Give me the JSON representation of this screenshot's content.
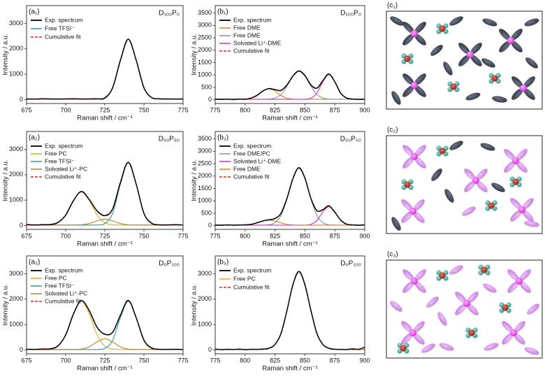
{
  "chart_data": [
    {
      "type": "line",
      "label": "(a₁)",
      "annotation": "D₁₀₀P₀",
      "x_label": "Raman shift / cm⁻¹",
      "y_label": "Intensity / a.u.",
      "x": [
        675,
        680,
        685,
        690,
        695,
        700,
        705,
        710,
        715,
        720,
        725,
        730,
        735,
        740,
        745,
        750,
        755,
        760,
        765,
        770,
        775
      ],
      "xlim": [
        675,
        775
      ],
      "xticks": [
        675,
        700,
        725,
        750,
        775
      ],
      "ylim": [
        -150,
        3700
      ],
      "yticks": [
        0,
        1000,
        2000,
        3000
      ],
      "legend": "upper left",
      "series": [
        {
          "name": "Exp. spectrum",
          "color": "#000000",
          "values": [
            30,
            25,
            35,
            30,
            25,
            30,
            35,
            30,
            30,
            35,
            60,
            470,
            1550,
            2380,
            1560,
            470,
            80,
            35,
            30,
            25,
            30
          ]
        },
        {
          "name": "Free TFSI⁻",
          "color": "#2a9d8f",
          "values": [
            25,
            25,
            25,
            25,
            25,
            25,
            25,
            25,
            25,
            28,
            81,
            472,
            1576,
            2375,
            1576,
            472,
            81,
            28,
            25,
            25,
            25
          ]
        },
        {
          "name": "Cumulative fit",
          "color": "#e8201f",
          "dash": true,
          "values": [
            25,
            25,
            25,
            25,
            25,
            25,
            25,
            25,
            25,
            28,
            81,
            472,
            1576,
            2375,
            1576,
            472,
            81,
            28,
            25,
            25,
            25
          ]
        }
      ]
    },
    {
      "type": "line",
      "label": "(b₁)",
      "annotation": "D₁₀₀P₀",
      "x_label": "Raman shift / cm⁻¹",
      "y_label": "Intensity / a.u.",
      "x": [
        775,
        780,
        785,
        790,
        795,
        800,
        805,
        810,
        815,
        820,
        825,
        830,
        835,
        840,
        845,
        850,
        855,
        860,
        865,
        870,
        875,
        880,
        885,
        890,
        895,
        900
      ],
      "xlim": [
        775,
        900
      ],
      "xticks": [
        775,
        800,
        825,
        850,
        875,
        900
      ],
      "ylim": [
        -150,
        3800
      ],
      "yticks": [
        0,
        500,
        1000,
        1500,
        2000,
        2500,
        3000,
        3500
      ],
      "legend": "upper left",
      "series": [
        {
          "name": "Exp. spectrum",
          "color": "#000000",
          "values": [
            30,
            15,
            25,
            10,
            30,
            20,
            70,
            180,
            360,
            450,
            410,
            380,
            600,
            960,
            1160,
            980,
            600,
            470,
            770,
            1040,
            720,
            260,
            70,
            30,
            15,
            25
          ]
        },
        {
          "name": "Free DME",
          "color": "#e07b28",
          "values": [
            20,
            20,
            20,
            20,
            21,
            27,
            63,
            175,
            353,
            450,
            353,
            175,
            63,
            27,
            20,
            20,
            20,
            20,
            20,
            20,
            20,
            20,
            20,
            20,
            20,
            20
          ]
        },
        {
          "name": "Free DME",
          "color": "#8a8d9c",
          "values": [
            20,
            20,
            20,
            20,
            20,
            20,
            20,
            20,
            21,
            29,
            71,
            216,
            549,
            963,
            1170,
            963,
            549,
            216,
            71,
            29,
            21,
            20,
            20,
            20,
            20,
            20
          ]
        },
        {
          "name": "Solvated Li⁺-DME",
          "color": "#d52fd0",
          "values": [
            20,
            20,
            20,
            20,
            20,
            20,
            20,
            20,
            20,
            20,
            20,
            20,
            20,
            20,
            20,
            24,
            64,
            270,
            727,
            1020,
            727,
            270,
            64,
            24,
            20,
            20
          ]
        },
        {
          "name": "Cumulative fit",
          "color": "#e8201f",
          "dash": true,
          "values": [
            20,
            20,
            20,
            20,
            21,
            27,
            63,
            175,
            354,
            459,
            404,
            371,
            592,
            970,
            1170,
            967,
            593,
            466,
            778,
            1029,
            728,
            270,
            64,
            24,
            20,
            20
          ]
        }
      ]
    },
    {
      "type": "line",
      "label": "(a₂)",
      "annotation": "D₅₀P₅₀",
      "x_label": "Raman shift / cm⁻¹",
      "y_label": "Intensity / a.u.",
      "x": [
        675,
        680,
        685,
        690,
        695,
        700,
        705,
        710,
        715,
        720,
        725,
        730,
        735,
        740,
        745,
        750,
        755,
        760,
        765,
        770,
        775
      ],
      "xlim": [
        675,
        775
      ],
      "xticks": [
        675,
        700,
        725,
        750,
        775
      ],
      "ylim": [
        -150,
        3700
      ],
      "yticks": [
        0,
        1000,
        2000,
        3000
      ],
      "legend": "upper left",
      "series": [
        {
          "name": "Exp. spectrum",
          "color": "#000000",
          "values": [
            40,
            25,
            35,
            40,
            120,
            410,
            980,
            1340,
            1030,
            580,
            390,
            650,
            1700,
            2490,
            1640,
            480,
            90,
            30,
            25,
            35,
            20
          ]
        },
        {
          "name": "Free PC",
          "color": "#e6a817",
          "values": [
            20,
            20,
            20,
            31,
            111,
            418,
            987,
            1320,
            987,
            418,
            111,
            31,
            21,
            20,
            20,
            20,
            20,
            20,
            20,
            20,
            20
          ]
        },
        {
          "name": "Free TFSI⁻",
          "color": "#2a9d8f",
          "values": [
            20,
            20,
            20,
            20,
            20,
            20,
            20,
            20,
            20,
            23,
            79,
            486,
            1637,
            2470,
            1637,
            486,
            79,
            23,
            20,
            20,
            20
          ]
        },
        {
          "name": "Solvated Li⁺-PC",
          "color": "#a58a2c",
          "values": [
            20,
            20,
            20,
            20,
            20,
            20,
            20,
            30,
            78,
            183,
            250,
            183,
            78,
            30,
            21,
            20,
            20,
            20,
            20,
            20,
            20
          ]
        },
        {
          "name": "Cumulative fit",
          "color": "#e8201f",
          "dash": true,
          "values": [
            20,
            20,
            20,
            31,
            111,
            418,
            987,
            1330,
            1025,
            584,
            400,
            660,
            1696,
            2480,
            1638,
            486,
            79,
            23,
            20,
            20,
            20
          ]
        }
      ]
    },
    {
      "type": "line",
      "label": "(b₂)",
      "annotation": "D₅₀P₅₀",
      "x_label": "Raman shift / cm⁻¹",
      "y_label": "Intensity / a.u.",
      "x": [
        775,
        780,
        785,
        790,
        795,
        800,
        805,
        810,
        815,
        820,
        825,
        830,
        835,
        840,
        845,
        850,
        855,
        860,
        865,
        870,
        875,
        880,
        885,
        890,
        895,
        900
      ],
      "xlim": [
        775,
        900
      ],
      "xticks": [
        775,
        800,
        825,
        850,
        875,
        900
      ],
      "ylim": [
        -150,
        3800
      ],
      "yticks": [
        0,
        500,
        1000,
        1500,
        2000,
        2500,
        3000,
        3500
      ],
      "legend": "upper left",
      "series": [
        {
          "name": "Exp. spectrum",
          "color": "#000000",
          "values": [
            25,
            15,
            30,
            20,
            25,
            35,
            50,
            120,
            190,
            240,
            290,
            500,
            1100,
            1900,
            2340,
            1920,
            1100,
            610,
            640,
            800,
            540,
            220,
            60,
            30,
            15,
            30
          ]
        },
        {
          "name": "Free DME/PC",
          "color": "#8a8d9c",
          "values": [
            20,
            20,
            20,
            20,
            20,
            20,
            20,
            20,
            22,
            37,
            121,
            411,
            1078,
            1906,
            2320,
            1906,
            1078,
            411,
            121,
            37,
            22,
            20,
            20,
            20,
            20,
            20
          ]
        },
        {
          "name": "Solvated Li⁺-DME",
          "color": "#d52fd0",
          "values": [
            20,
            20,
            20,
            20,
            20,
            20,
            20,
            20,
            20,
            20,
            20,
            20,
            20,
            20,
            20,
            20,
            53,
            208,
            550,
            770,
            550,
            208,
            53,
            23,
            20,
            20
          ]
        },
        {
          "name": "Free DME",
          "color": "#e07b28",
          "values": [
            20,
            20,
            20,
            20,
            22,
            29,
            54,
            112,
            184,
            220,
            184,
            112,
            54,
            29,
            22,
            20,
            20,
            20,
            20,
            20,
            20,
            20,
            20,
            20,
            20,
            20
          ]
        },
        {
          "name": "Cumulative fit",
          "color": "#e8201f",
          "dash": true,
          "values": [
            20,
            20,
            20,
            20,
            22,
            29,
            54,
            112,
            186,
            237,
            285,
            503,
            1112,
            1915,
            2322,
            1906,
            1111,
            599,
            651,
            787,
            552,
            208,
            53,
            23,
            20,
            20
          ]
        }
      ]
    },
    {
      "type": "line",
      "label": "(a₃)",
      "annotation": "D₀P₁₀₀",
      "x_label": "Raman shift / cm⁻¹",
      "y_label": "Intensity / a.u.",
      "x": [
        675,
        680,
        685,
        690,
        695,
        700,
        705,
        710,
        715,
        720,
        725,
        730,
        735,
        740,
        745,
        750,
        755,
        760,
        765,
        770,
        775
      ],
      "xlim": [
        675,
        775
      ],
      "xticks": [
        675,
        700,
        725,
        750,
        775
      ],
      "ylim": [
        -150,
        3700
      ],
      "yticks": [
        0,
        1000,
        2000,
        3000
      ],
      "legend": "upper left",
      "series": [
        {
          "name": "Exp. spectrum",
          "color": "#000000",
          "values": [
            30,
            25,
            40,
            45,
            160,
            590,
            1420,
            1940,
            1560,
            900,
            620,
            700,
            1370,
            1950,
            1280,
            390,
            80,
            30,
            25,
            30,
            20
          ]
        },
        {
          "name": "Free PC",
          "color": "#e6a817",
          "values": [
            20,
            20,
            20,
            37,
            153,
            601,
            1434,
            1920,
            1434,
            601,
            153,
            37,
            21,
            20,
            20,
            20,
            20,
            20,
            20,
            20,
            20
          ]
        },
        {
          "name": "Free TFSI⁻",
          "color": "#2a9d8f",
          "values": [
            20,
            20,
            20,
            20,
            20,
            20,
            20,
            20,
            20,
            23,
            66,
            381,
            1274,
            1920,
            1274,
            381,
            66,
            23,
            20,
            20,
            20
          ]
        },
        {
          "name": "Solvated Li⁺-PC",
          "color": "#a58a2c",
          "values": [
            20,
            20,
            20,
            20,
            20,
            20,
            20,
            38,
            125,
            317,
            440,
            317,
            125,
            38,
            21,
            20,
            20,
            20,
            20,
            20,
            20
          ]
        },
        {
          "name": "Cumulative fit",
          "color": "#e8201f",
          "dash": true,
          "values": [
            20,
            20,
            20,
            37,
            153,
            601,
            1434,
            1938,
            1539,
            901,
            619,
            695,
            1380,
            1938,
            1275,
            381,
            66,
            23,
            20,
            20,
            20
          ]
        }
      ]
    },
    {
      "type": "line",
      "label": "(b₃)",
      "annotation": "D₀P₁₀₀",
      "x_label": "Raman shift / cm⁻¹",
      "y_label": "Intensity / a.u.",
      "x": [
        775,
        780,
        785,
        790,
        795,
        800,
        805,
        810,
        815,
        820,
        825,
        830,
        835,
        840,
        845,
        850,
        855,
        860,
        865,
        870,
        875,
        880,
        885,
        890,
        895,
        900
      ],
      "xlim": [
        775,
        900
      ],
      "xticks": [
        775,
        800,
        825,
        850,
        875,
        900
      ],
      "ylim": [
        -150,
        3700
      ],
      "yticks": [
        0,
        1000,
        2000,
        3000
      ],
      "legend": "upper left",
      "series": [
        {
          "name": "Exp. spectrum",
          "color": "#000000",
          "values": [
            40,
            15,
            30,
            20,
            35,
            15,
            30,
            25,
            40,
            70,
            220,
            650,
            1560,
            2570,
            3090,
            2560,
            1560,
            650,
            220,
            70,
            30,
            25,
            20,
            45,
            30,
            110
          ]
        },
        {
          "name": "Free PC",
          "color": "#e6a817",
          "values": [
            20,
            20,
            20,
            20,
            20,
            20,
            20,
            20,
            26,
            60,
            212,
            660,
            1545,
            2582,
            3070,
            2582,
            1545,
            660,
            212,
            60,
            26,
            20,
            20,
            20,
            20,
            20
          ]
        },
        {
          "name": "Cumulative fit",
          "color": "#e8201f",
          "dash": true,
          "values": [
            20,
            20,
            20,
            20,
            20,
            20,
            20,
            20,
            26,
            60,
            212,
            660,
            1545,
            2582,
            3070,
            2582,
            1545,
            660,
            212,
            60,
            26,
            20,
            20,
            20,
            20,
            20
          ]
        }
      ]
    }
  ],
  "schematics": [
    {
      "label": "(c₁)"
    },
    {
      "label": "(c₂)"
    },
    {
      "label": "(c₃)"
    }
  ]
}
